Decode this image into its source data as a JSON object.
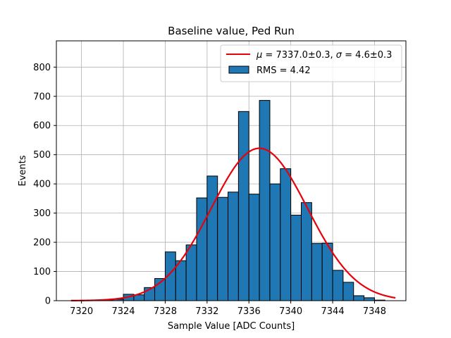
{
  "chart_data": {
    "type": "bar",
    "title": "Baseline value, Ped Run",
    "xlabel": "Sample Value [ADC Counts]",
    "ylabel": "Events",
    "xlim": [
      7317.6,
      7351.0
    ],
    "ylim": [
      0,
      890
    ],
    "xticks": [
      7320,
      7324,
      7328,
      7332,
      7336,
      7340,
      7344,
      7348
    ],
    "yticks": [
      0,
      100,
      200,
      300,
      400,
      500,
      600,
      700,
      800
    ],
    "grid": true,
    "legend_position": "top-right",
    "bin_width": 1,
    "bins": [
      {
        "x": 7320.5,
        "value": 1
      },
      {
        "x": 7321.5,
        "value": 0
      },
      {
        "x": 7322.5,
        "value": 2
      },
      {
        "x": 7323.5,
        "value": 5
      },
      {
        "x": 7324.5,
        "value": 22
      },
      {
        "x": 7325.5,
        "value": 20
      },
      {
        "x": 7326.5,
        "value": 45
      },
      {
        "x": 7327.5,
        "value": 76
      },
      {
        "x": 7328.5,
        "value": 167
      },
      {
        "x": 7329.5,
        "value": 137
      },
      {
        "x": 7330.5,
        "value": 191
      },
      {
        "x": 7331.5,
        "value": 352
      },
      {
        "x": 7332.5,
        "value": 427
      },
      {
        "x": 7333.5,
        "value": 354
      },
      {
        "x": 7334.5,
        "value": 372
      },
      {
        "x": 7335.5,
        "value": 648
      },
      {
        "x": 7336.5,
        "value": 365
      },
      {
        "x": 7337.5,
        "value": 686
      },
      {
        "x": 7338.5,
        "value": 400
      },
      {
        "x": 7339.5,
        "value": 452
      },
      {
        "x": 7340.5,
        "value": 293
      },
      {
        "x": 7341.5,
        "value": 336
      },
      {
        "x": 7342.5,
        "value": 196
      },
      {
        "x": 7343.5,
        "value": 197
      },
      {
        "x": 7344.5,
        "value": 104
      },
      {
        "x": 7345.5,
        "value": 63
      },
      {
        "x": 7346.5,
        "value": 17
      },
      {
        "x": 7347.5,
        "value": 10
      },
      {
        "x": 7348.5,
        "value": 2
      }
    ],
    "fit": {
      "type": "gaussian",
      "mu": 7337.0,
      "sigma": 4.6,
      "amplitude": 522,
      "x_range": [
        7319.0,
        7350.0
      ],
      "color": "#e8000b"
    },
    "series": [
      {
        "name": "$\\mu = 7337.0\\pm0.3$, $\\sigma = 4.6\\pm0.3$",
        "kind": "fit-line",
        "color": "#e8000b"
      },
      {
        "name": "RMS = 4.42",
        "kind": "histogram",
        "color": "#1f77b4"
      }
    ]
  },
  "legend": {
    "fit_label_parts": [
      "μ",
      " = 7337.0±0.3, ",
      "σ",
      " = 4.6±0.3"
    ],
    "hist_label": "RMS = 4.42"
  },
  "colors": {
    "bar_fill": "#1f77b4",
    "bar_edge": "#000000",
    "fit_line": "#e8000b",
    "grid": "#b0b0b0"
  }
}
